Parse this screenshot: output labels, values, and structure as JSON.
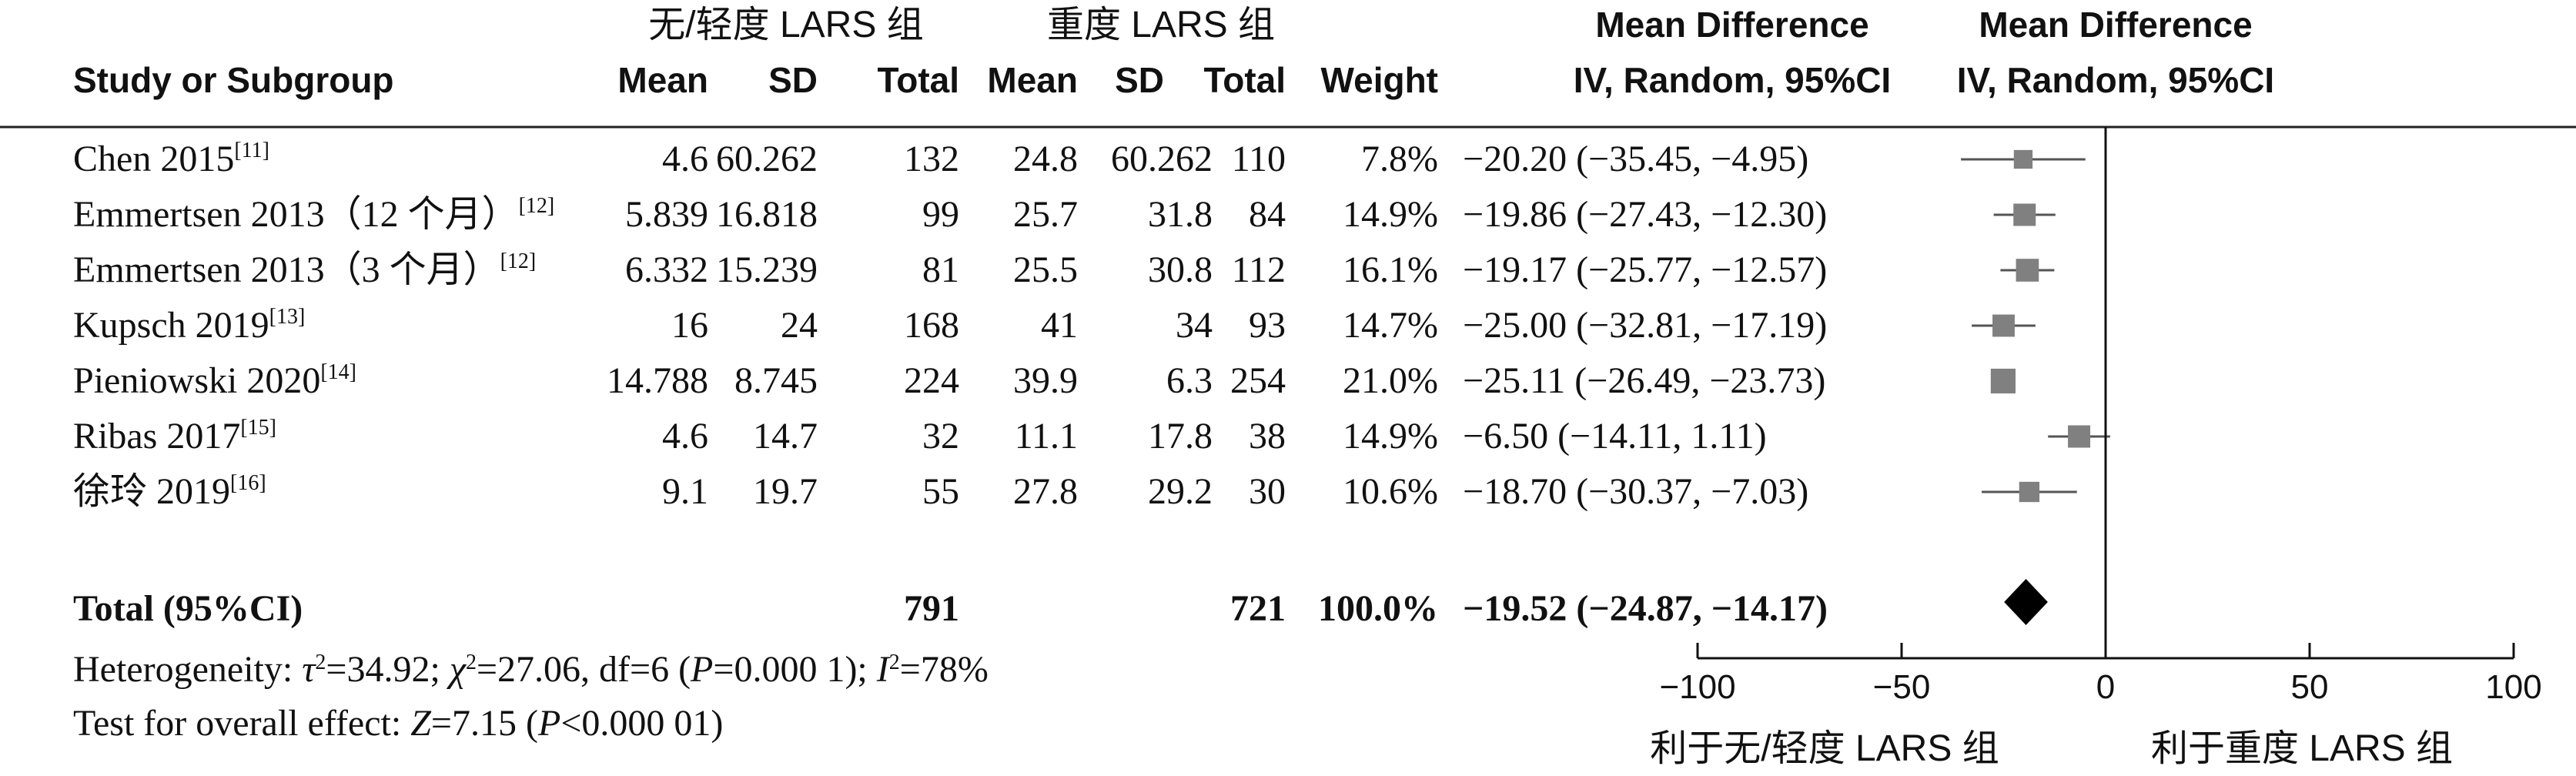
{
  "header": {
    "group1": "无/轻度 LARS 组",
    "group2": "重度 LARS 组",
    "study_col": "Study or Subgroup",
    "mean": "Mean",
    "sd": "SD",
    "total": "Total",
    "weight": "Weight",
    "md_title": "Mean Difference",
    "md_sub": "IV, Random, 95%CI",
    "plot_title": "Mean Difference",
    "plot_sub": "IV, Random, 95%CI"
  },
  "chart_data": {
    "type": "forest",
    "studies": [
      {
        "name": "Chen 2015",
        "ref": "[11]",
        "mean1": "4.6",
        "sd1": "60.262",
        "n1": "132",
        "mean2": "24.8",
        "sd2": "60.262",
        "n2": "110",
        "weight": "7.8%",
        "ci_text": "−20.20 (−35.45, −4.95)",
        "md": -20.2,
        "lo": -35.45,
        "hi": -4.95,
        "w": 7.8
      },
      {
        "name": "Emmertsen 2013（12 个月）",
        "ref": "[12]",
        "mean1": "5.839",
        "sd1": "16.818",
        "n1": "99",
        "mean2": "25.7",
        "sd2": "31.8",
        "n2": "84",
        "weight": "14.9%",
        "ci_text": "−19.86 (−27.43, −12.30)",
        "md": -19.86,
        "lo": -27.43,
        "hi": -12.3,
        "w": 14.9
      },
      {
        "name": "Emmertsen 2013（3 个月）",
        "ref": "[12]",
        "mean1": "6.332",
        "sd1": "15.239",
        "n1": "81",
        "mean2": "25.5",
        "sd2": "30.8",
        "n2": "112",
        "weight": "16.1%",
        "ci_text": "−19.17 (−25.77, −12.57)",
        "md": -19.17,
        "lo": -25.77,
        "hi": -12.57,
        "w": 16.1
      },
      {
        "name": "Kupsch 2019",
        "ref": "[13]",
        "mean1": "16",
        "sd1": "24",
        "n1": "168",
        "mean2": "41",
        "sd2": "34",
        "n2": "93",
        "weight": "14.7%",
        "ci_text": "−25.00 (−32.81, −17.19)",
        "md": -25.0,
        "lo": -32.81,
        "hi": -17.19,
        "w": 14.7
      },
      {
        "name": "Pieniowski 2020",
        "ref": "[14]",
        "mean1": "14.788",
        "sd1": "8.745",
        "n1": "224",
        "mean2": "39.9",
        "sd2": "6.3",
        "n2": "254",
        "weight": "21.0%",
        "ci_text": "−25.11 (−26.49, −23.73)",
        "md": -25.11,
        "lo": -26.49,
        "hi": -23.73,
        "w": 21.0
      },
      {
        "name": "Ribas 2017",
        "ref": "[15]",
        "mean1": "4.6",
        "sd1": "14.7",
        "n1": "32",
        "mean2": "11.1",
        "sd2": "17.8",
        "n2": "38",
        "weight": "14.9%",
        "ci_text": "−6.50 (−14.11, 1.11)",
        "md": -6.5,
        "lo": -14.11,
        "hi": 1.11,
        "w": 14.9
      },
      {
        "name": "徐玲 2019",
        "ref": "[16]",
        "mean1": "9.1",
        "sd1": "19.7",
        "n1": "55",
        "mean2": "27.8",
        "sd2": "29.2",
        "n2": "30",
        "weight": "10.6%",
        "ci_text": "−18.70 (−30.37, −7.03)",
        "md": -18.7,
        "lo": -30.37,
        "hi": -7.03,
        "w": 10.6
      }
    ],
    "total": {
      "label": "Total (95%CI)",
      "n1": "791",
      "n2": "721",
      "weight": "100.0%",
      "ci_text": "−19.52 (−24.87, −14.17)",
      "md": -19.52,
      "lo": -24.87,
      "hi": -14.17
    },
    "heterogeneity": {
      "prefix": "Heterogeneity: ",
      "tau_sym": "τ",
      "tau_val": "=34.92; ",
      "chi_sym": "χ",
      "chi_val": "=27.06, df=6 (",
      "p_sym": "P",
      "p_val": "=0.000 1); ",
      "i_sym": "I",
      "i_val": "=78%",
      "sq": "2"
    },
    "overall": {
      "prefix": "Test for overall effect: ",
      "z_sym": "Z",
      "z_val": "=7.15 (",
      "p_sym": "P",
      "p_val": "<0.000 01)"
    },
    "xlim": [
      -100,
      100
    ],
    "ticks": [
      -100,
      -50,
      0,
      50,
      100
    ],
    "tick_labels": [
      "−100",
      "−50",
      "0",
      "50",
      "100"
    ],
    "favours_left": "利于无/轻度 LARS 组",
    "favours_right": "利于重度 LARS 组"
  }
}
